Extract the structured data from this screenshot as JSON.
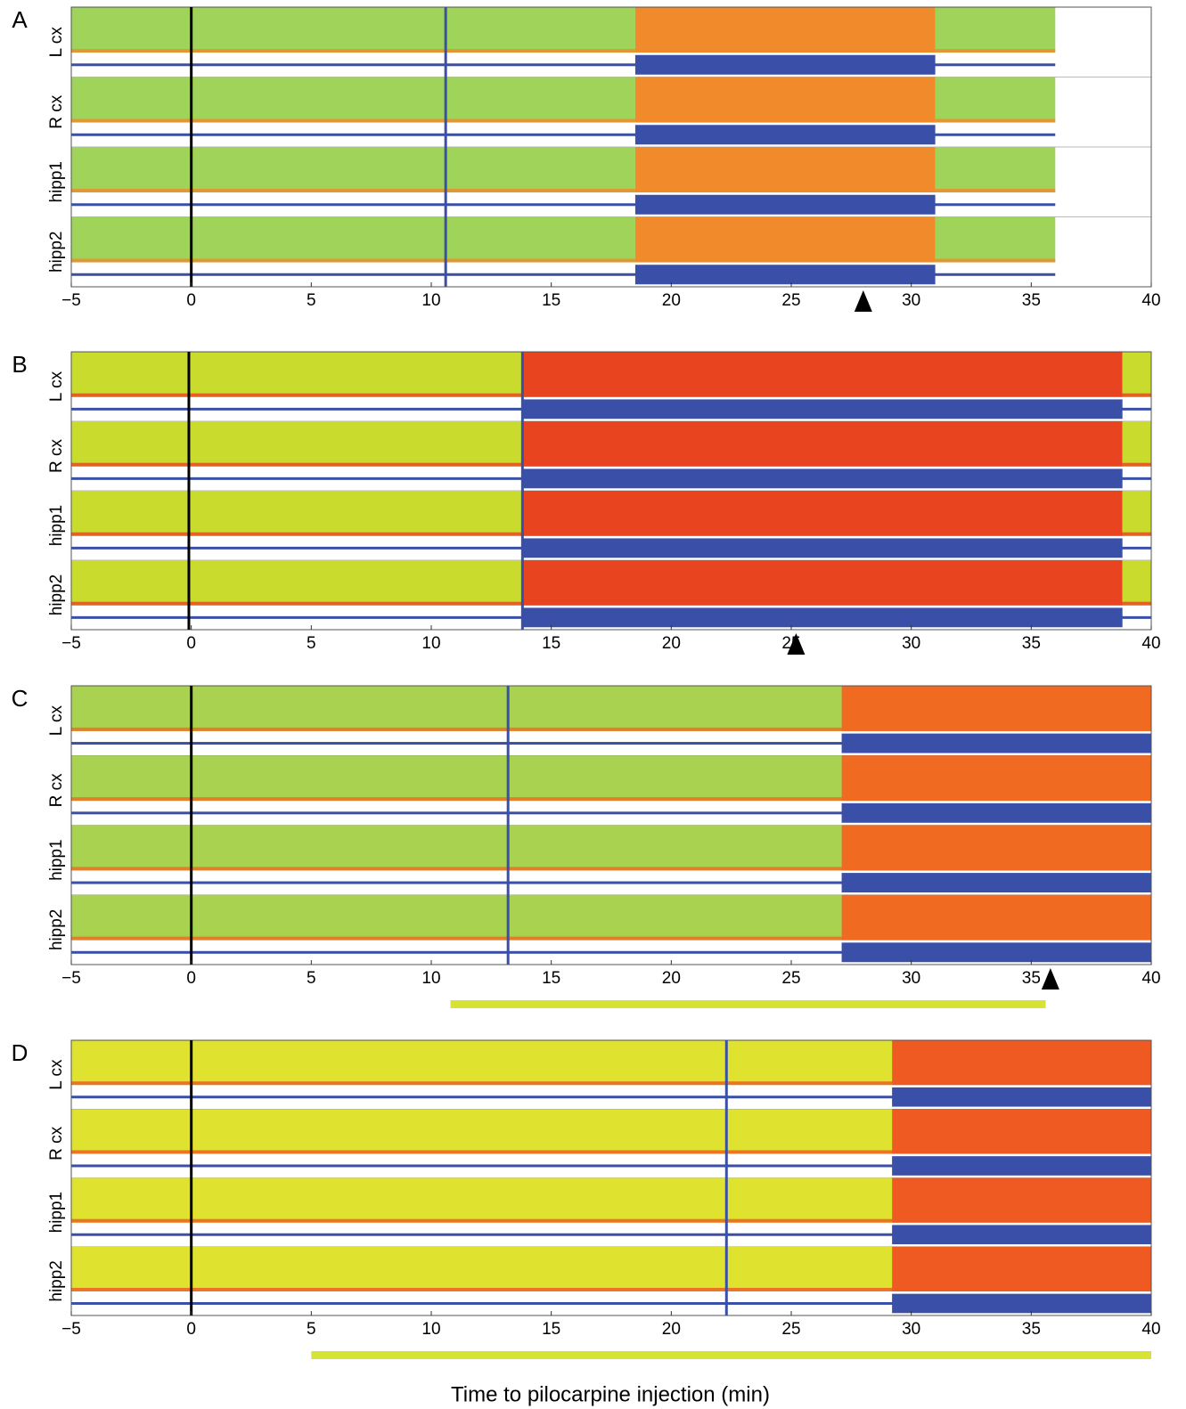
{
  "chart_data": [
    {
      "type": "eeg",
      "panel": "A",
      "channels": [
        "L cx",
        "R cx",
        "hipp1",
        "hipp2"
      ],
      "xlim": [
        -5,
        40
      ],
      "xticks": [
        {
          "value": -5,
          "label": "−5"
        },
        0,
        5,
        10,
        15,
        20,
        25,
        30,
        35,
        40
      ],
      "injection": 0,
      "marker": 10.6,
      "onset": 18.5,
      "offset": 31,
      "data_end": 36,
      "arrow": 28,
      "baseline_color": "#9fd35a",
      "seizure_color": "#f08a2a",
      "trace_color": "#3a4fa8",
      "line_color": "#000000"
    },
    {
      "type": "eeg",
      "panel": "B",
      "channels": [
        "L cx",
        "R cx",
        "hipp1",
        "hipp2"
      ],
      "xlim": [
        -5,
        40
      ],
      "xticks": [
        {
          "value": -5,
          "label": "−5"
        },
        0,
        5,
        10,
        15,
        20,
        25,
        30,
        35,
        40
      ],
      "injection": -0.1,
      "marker": 13.8,
      "onset": 13.8,
      "offset": 38.8,
      "data_end": 40,
      "arrow": 25.2,
      "baseline_color": "#c9dc2e",
      "seizure_color": "#e8441f",
      "trace_color": "#3a4fa8",
      "line_color": "#000000"
    },
    {
      "type": "eeg",
      "panel": "C",
      "channels": [
        "L cx",
        "R cx",
        "hipp1",
        "hipp2"
      ],
      "xlim": [
        -5,
        40
      ],
      "xticks": [
        {
          "value": -5,
          "label": "−5"
        },
        0,
        5,
        10,
        15,
        20,
        25,
        30,
        35,
        40
      ],
      "injection": 0,
      "marker": 13.2,
      "onset": 27.1,
      "data_end": 40,
      "arrow": 35.8,
      "bar": [
        10.8,
        35.6
      ],
      "baseline_color": "#a9d250",
      "seizure_color": "#f06a22",
      "trace_color": "#3a4fa8",
      "line_color": "#000000",
      "bar_color": "#d6e234"
    },
    {
      "type": "eeg",
      "panel": "D",
      "channels": [
        "L cx",
        "R cx",
        "hipp1",
        "hipp2"
      ],
      "xlim": [
        -5,
        40
      ],
      "xticks": [
        {
          "value": -5,
          "label": "−5"
        },
        0,
        5,
        10,
        15,
        20,
        25,
        30,
        35,
        40
      ],
      "injection": 0,
      "marker": 22.3,
      "onset": 29.2,
      "data_end": 40,
      "bar": [
        5,
        40
      ],
      "baseline_color": "#dfe22e",
      "seizure_color": "#ee5a22",
      "trace_color": "#3a4fa8",
      "line_color": "#000000",
      "bar_color": "#d6e234",
      "x_label": "Time to pilocarpine injection (min)"
    }
  ]
}
